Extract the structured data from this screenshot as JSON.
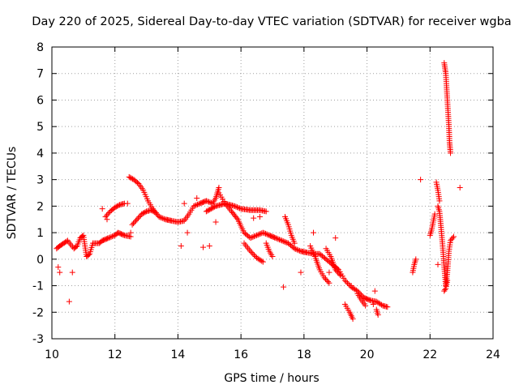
{
  "chart_data": {
    "type": "scatter",
    "title": "Day 220 of 2025, Sidereal Day-to-day VTEC variation (SDTVAR) for receiver wgba",
    "xlabel": "GPS time / hours",
    "ylabel": "SDTVAR / TECUs",
    "xlim": [
      10,
      24
    ],
    "ylim": [
      -3,
      8
    ],
    "x_ticks": [
      "10",
      "12",
      "14",
      "16",
      "18",
      "20",
      "22",
      "24"
    ],
    "y_ticks": [
      "-3",
      "-2",
      "-1",
      "0",
      "1",
      "2",
      "3",
      "4",
      "5",
      "6",
      "7",
      "8"
    ],
    "grid": true,
    "marker": "plus",
    "color": "#ff0000",
    "segments": [
      [
        [
          10.15,
          0.4
        ],
        [
          10.25,
          0.5
        ],
        [
          10.5,
          0.7
        ],
        [
          10.7,
          0.4
        ],
        [
          10.8,
          0.5
        ],
        [
          10.9,
          0.8
        ],
        [
          11.0,
          0.9
        ],
        [
          11.1,
          0.1
        ],
        [
          11.2,
          0.2
        ],
        [
          11.3,
          0.6
        ],
        [
          11.5,
          0.6
        ],
        [
          11.6,
          0.7
        ],
        [
          11.8,
          0.8
        ],
        [
          12.0,
          0.9
        ],
        [
          12.1,
          1.0
        ],
        [
          12.3,
          0.9
        ],
        [
          12.5,
          0.85
        ]
      ],
      [
        [
          11.7,
          1.6
        ],
        [
          11.85,
          1.8
        ],
        [
          12.0,
          1.95
        ],
        [
          12.15,
          2.05
        ],
        [
          12.3,
          2.1
        ]
      ],
      [
        [
          12.45,
          3.1
        ],
        [
          12.6,
          3.0
        ],
        [
          12.75,
          2.85
        ],
        [
          12.9,
          2.6
        ],
        [
          13.05,
          2.2
        ],
        [
          13.2,
          1.9
        ],
        [
          13.4,
          1.6
        ],
        [
          13.6,
          1.5
        ],
        [
          13.8,
          1.45
        ],
        [
          14.0,
          1.4
        ],
        [
          14.2,
          1.45
        ],
        [
          14.35,
          1.7
        ],
        [
          14.5,
          2.0
        ],
        [
          14.7,
          2.1
        ],
        [
          14.9,
          2.2
        ],
        [
          15.1,
          2.1
        ],
        [
          15.2,
          2.3
        ],
        [
          15.3,
          2.7
        ]
      ],
      [
        [
          12.55,
          1.3
        ],
        [
          12.7,
          1.5
        ],
        [
          12.85,
          1.7
        ],
        [
          13.0,
          1.8
        ],
        [
          13.15,
          1.85
        ],
        [
          13.3,
          1.75
        ]
      ],
      [
        [
          15.3,
          2.5
        ],
        [
          15.5,
          2.1
        ],
        [
          15.7,
          1.8
        ],
        [
          15.9,
          1.5
        ],
        [
          16.1,
          1.0
        ],
        [
          16.3,
          0.8
        ],
        [
          16.5,
          0.9
        ],
        [
          16.7,
          1.0
        ],
        [
          16.9,
          0.9
        ],
        [
          17.1,
          0.8
        ],
        [
          17.3,
          0.7
        ],
        [
          17.5,
          0.6
        ],
        [
          17.7,
          0.4
        ],
        [
          17.9,
          0.3
        ],
        [
          18.1,
          0.25
        ],
        [
          18.3,
          0.2
        ],
        [
          18.5,
          0.2
        ],
        [
          18.7,
          0.0
        ],
        [
          18.9,
          -0.2
        ],
        [
          19.1,
          -0.4
        ],
        [
          19.3,
          -0.8
        ],
        [
          19.5,
          -1.05
        ],
        [
          19.7,
          -1.2
        ],
        [
          19.9,
          -1.45
        ],
        [
          20.1,
          -1.55
        ],
        [
          20.3,
          -1.6
        ],
        [
          20.5,
          -1.75
        ],
        [
          20.65,
          -1.8
        ]
      ],
      [
        [
          14.9,
          1.8
        ],
        [
          15.2,
          2.0
        ],
        [
          15.5,
          2.1
        ],
        [
          15.8,
          2.0
        ],
        [
          16.0,
          1.9
        ],
        [
          16.3,
          1.85
        ],
        [
          16.6,
          1.85
        ],
        [
          16.8,
          1.8
        ]
      ],
      [
        [
          16.1,
          0.6
        ],
        [
          16.3,
          0.3
        ],
        [
          16.5,
          0.05
        ],
        [
          16.7,
          -0.1
        ]
      ],
      [
        [
          16.8,
          0.6
        ],
        [
          16.9,
          0.3
        ],
        [
          17.0,
          0.1
        ]
      ],
      [
        [
          17.4,
          1.6
        ],
        [
          17.5,
          1.3
        ],
        [
          17.6,
          0.9
        ],
        [
          17.7,
          0.6
        ]
      ],
      [
        [
          18.2,
          0.5
        ],
        [
          18.35,
          0.1
        ],
        [
          18.5,
          -0.4
        ],
        [
          18.65,
          -0.7
        ],
        [
          18.8,
          -0.9
        ]
      ],
      [
        [
          18.7,
          0.4
        ],
        [
          18.85,
          0.1
        ],
        [
          19.0,
          -0.4
        ],
        [
          19.15,
          -0.6
        ]
      ],
      [
        [
          19.3,
          -1.7
        ],
        [
          19.45,
          -2.0
        ],
        [
          19.55,
          -2.25
        ]
      ],
      [
        [
          19.7,
          -1.3
        ],
        [
          19.8,
          -1.5
        ],
        [
          19.95,
          -1.75
        ]
      ],
      [
        [
          20.3,
          -1.9
        ],
        [
          20.35,
          -2.1
        ]
      ],
      [
        [
          21.45,
          -0.5
        ],
        [
          21.5,
          -0.2
        ],
        [
          21.55,
          0.0
        ]
      ],
      [
        [
          22.0,
          0.9
        ],
        [
          22.05,
          1.1
        ],
        [
          22.1,
          1.4
        ],
        [
          22.15,
          1.7
        ]
      ],
      [
        [
          22.25,
          2.0
        ],
        [
          22.3,
          1.8
        ],
        [
          22.35,
          1.2
        ],
        [
          22.4,
          0.5
        ],
        [
          22.45,
          -0.3
        ],
        [
          22.5,
          -1.0
        ],
        [
          22.55,
          -0.5
        ],
        [
          22.6,
          0.3
        ],
        [
          22.65,
          0.7
        ],
        [
          22.75,
          0.85
        ]
      ],
      [
        [
          22.2,
          2.9
        ],
        [
          22.25,
          2.6
        ],
        [
          22.3,
          2.2
        ]
      ],
      [
        [
          22.45,
          7.4
        ],
        [
          22.5,
          7.0
        ],
        [
          22.55,
          6.0
        ],
        [
          22.6,
          5.0
        ],
        [
          22.62,
          4.4
        ],
        [
          22.65,
          4.0
        ]
      ],
      [
        [
          22.45,
          -1.2
        ],
        [
          22.5,
          -1.1
        ],
        [
          22.55,
          -0.8
        ]
      ]
    ],
    "points": [
      [
        10.2,
        -0.3
      ],
      [
        10.25,
        -0.5
      ],
      [
        10.55,
        -1.6
      ],
      [
        10.65,
        -0.5
      ],
      [
        11.6,
        1.9
      ],
      [
        11.75,
        1.5
      ],
      [
        12.4,
        2.1
      ],
      [
        12.5,
        1.0
      ],
      [
        14.1,
        0.5
      ],
      [
        14.2,
        2.1
      ],
      [
        14.3,
        1.0
      ],
      [
        14.6,
        2.3
      ],
      [
        14.8,
        0.45
      ],
      [
        15.0,
        0.5
      ],
      [
        15.2,
        1.4
      ],
      [
        16.4,
        1.55
      ],
      [
        16.6,
        1.6
      ],
      [
        17.35,
        -1.05
      ],
      [
        17.9,
        -0.5
      ],
      [
        18.3,
        1.0
      ],
      [
        18.8,
        -0.5
      ],
      [
        19.0,
        0.8
      ],
      [
        19.5,
        -1.0
      ],
      [
        20.2,
        -1.7
      ],
      [
        20.25,
        -1.2
      ],
      [
        21.7,
        3.0
      ],
      [
        22.25,
        -0.2
      ],
      [
        22.95,
        2.7
      ]
    ]
  }
}
